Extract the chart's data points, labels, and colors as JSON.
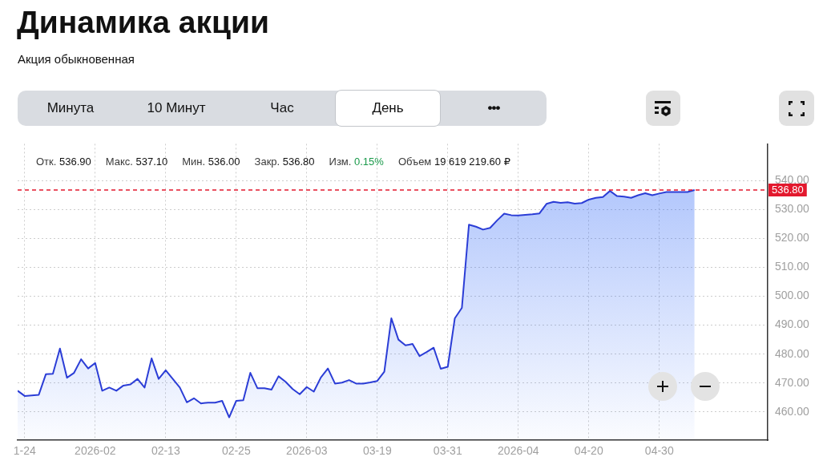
{
  "chart_data": {
    "type": "area",
    "title": "Динамика акции",
    "subtitle": "Акция обыкновенная",
    "categories": [
      null,
      "1-24",
      null,
      null,
      null,
      null,
      null,
      null,
      null,
      null,
      null,
      "2026-02",
      null,
      null,
      null,
      null,
      null,
      null,
      null,
      null,
      null,
      "02-13",
      null,
      null,
      null,
      null,
      null,
      null,
      null,
      null,
      null,
      "02-25",
      null,
      null,
      null,
      null,
      null,
      null,
      null,
      null,
      null,
      "2026-03",
      null,
      null,
      null,
      null,
      null,
      null,
      null,
      null,
      null,
      "03-19",
      null,
      null,
      null,
      null,
      null,
      null,
      null,
      null,
      null,
      "03-31",
      null,
      null,
      null,
      null,
      null,
      null,
      null,
      null,
      null,
      "2026-04",
      null,
      null,
      null,
      null,
      null,
      null,
      null,
      null,
      null,
      "04-20",
      null,
      null,
      null,
      null,
      null,
      null,
      null,
      null,
      null,
      "04-30",
      null,
      null,
      null,
      null,
      null
    ],
    "values": [
      467.3,
      465.5,
      465.7,
      465.9,
      473.0,
      473.2,
      481.9,
      471.8,
      473.5,
      478.2,
      475.0,
      476.9,
      467.3,
      468.4,
      467.3,
      469.1,
      469.5,
      471.4,
      468.4,
      478.5,
      471.4,
      474.4,
      471.4,
      468.4,
      463.3,
      464.7,
      462.9,
      463.2,
      463.2,
      463.8,
      458.1,
      463.8,
      464.0,
      473.5,
      468.2,
      468.2,
      467.7,
      472.3,
      470.4,
      467.9,
      466.1,
      468.6,
      467.0,
      471.9,
      475.0,
      469.8,
      470.1,
      471.0,
      469.8,
      469.8,
      470.2,
      470.7,
      473.9,
      492.4,
      485.0,
      483.0,
      483.5,
      479.3,
      480.7,
      482.2,
      474.9,
      475.6,
      492.4,
      496.0,
      524.8,
      524.1,
      523.1,
      523.7,
      526.3,
      528.6,
      528.1,
      528.0,
      528.2,
      528.4,
      528.7,
      532.0,
      532.7,
      532.4,
      532.6,
      532.1,
      532.3,
      533.5,
      534.1,
      534.4,
      536.5,
      534.7,
      534.5,
      534.1,
      535.0,
      535.7,
      535.0,
      535.6,
      536.1,
      536.1,
      536.1,
      536.1,
      536.8
    ],
    "color": "#2b3dd6",
    "ylim": [
      450.2,
      552.8
    ],
    "yticks": [
      {
        "value": 460,
        "label": "460.00"
      },
      {
        "value": 470,
        "label": "470.00"
      },
      {
        "value": 480,
        "label": "480.00"
      },
      {
        "value": 490,
        "label": "490.00"
      },
      {
        "value": 500,
        "label": "500.00"
      },
      {
        "value": 510,
        "label": "510.00"
      },
      {
        "value": 520,
        "label": "520.00"
      },
      {
        "value": 530,
        "label": "530.00"
      },
      {
        "value": 540,
        "label": "540.00"
      }
    ],
    "grid": true,
    "ref_lines": [
      {
        "axis": "y",
        "value": 536.8,
        "label": "536.80",
        "color": "#e3192e",
        "line_style": "dashed"
      }
    ],
    "annotations": [
      "Отк. 536.90",
      "Макс. 537.10",
      "Мин. 536.00",
      "Закр. 536.80",
      "Изм. 0.15%",
      "Объем 19 619 219.60 ₽",
      "Минута",
      "10 Минут",
      "Час",
      "День",
      "•••"
    ]
  }
}
